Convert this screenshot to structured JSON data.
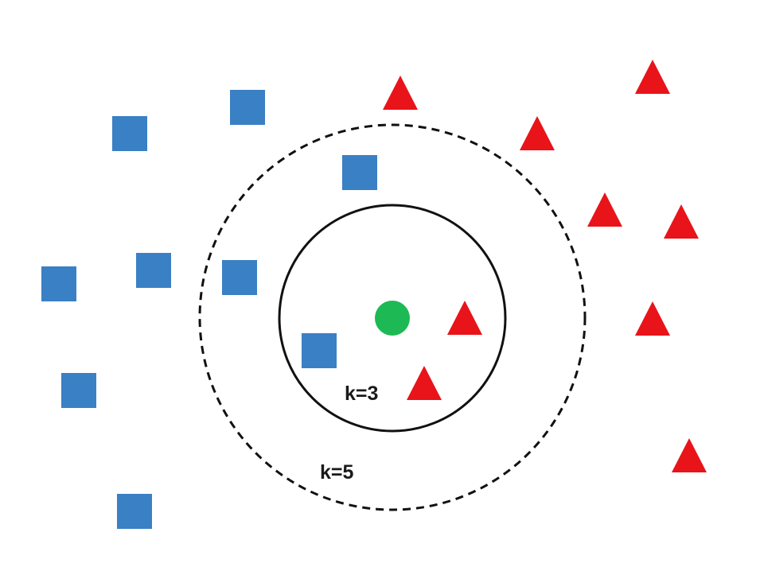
{
  "labels": {
    "inner_circle": "k=3",
    "outer_circle": "k=5"
  },
  "colors": {
    "square": "#3a80c4",
    "triangle": "#e8141a",
    "query_point": "#1db954",
    "circle_stroke": "#111111"
  },
  "legend_shapes": {
    "square": "blue-square-icon",
    "triangle": "red-triangle-icon",
    "query": "green-circle-icon"
  }
}
